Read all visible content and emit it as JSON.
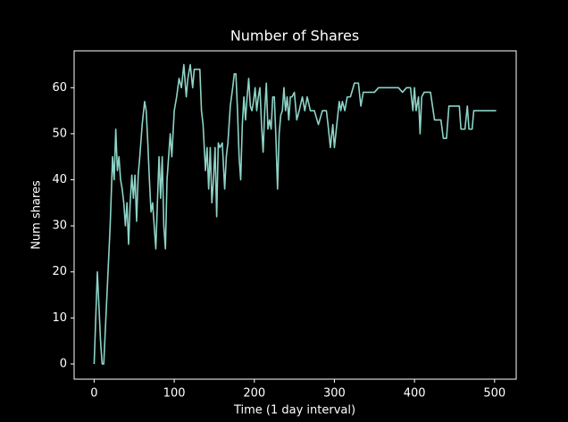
{
  "chart_data": {
    "type": "line",
    "title": "Number of Shares",
    "xlabel": "Time (1 day interval)",
    "ylabel": "Num shares",
    "x": [
      0,
      4,
      8,
      10,
      12,
      20,
      23,
      25,
      27,
      29,
      31,
      33,
      35,
      37,
      39,
      41,
      43,
      45,
      47,
      49,
      51,
      53,
      55,
      57,
      60,
      63,
      65,
      67,
      69,
      71,
      73,
      75,
      77,
      79,
      81,
      83,
      85,
      87,
      89,
      91,
      93,
      95,
      97,
      100,
      103,
      106,
      109,
      112,
      115,
      117,
      120,
      123,
      125,
      128,
      132,
      134,
      136,
      139,
      141,
      143,
      145,
      147,
      149,
      151,
      153,
      155,
      157,
      160,
      163,
      165,
      167,
      170,
      173,
      175,
      177,
      179,
      181,
      183,
      185,
      187,
      189,
      191,
      193,
      195,
      197,
      199,
      201,
      203,
      205,
      207,
      209,
      211,
      213,
      215,
      217,
      219,
      221,
      223,
      225,
      227,
      229,
      231,
      233,
      235,
      237,
      239,
      241,
      243,
      245,
      247,
      250,
      253,
      256,
      260,
      263,
      266,
      270,
      275,
      280,
      285,
      290,
      292,
      295,
      298,
      300,
      303,
      306,
      308,
      310,
      313,
      316,
      320,
      325,
      330,
      333,
      336,
      339,
      350,
      355,
      360,
      380,
      385,
      390,
      395,
      398,
      400,
      402,
      405,
      407,
      409,
      412,
      420,
      425,
      433,
      436,
      440,
      443,
      450,
      456,
      458,
      463,
      466,
      468,
      472,
      474,
      480,
      490,
      502
    ],
    "series": [
      {
        "name": "Num shares",
        "color": "#8dd3c7",
        "values": [
          0,
          20,
          5,
          0,
          0,
          30,
          45,
          40,
          51,
          42,
          45,
          40,
          38,
          35,
          30,
          35,
          26,
          35,
          41,
          36,
          41,
          31,
          41,
          45,
          52,
          57,
          55,
          48,
          40,
          33,
          35,
          30,
          25,
          35,
          45,
          36,
          45,
          30,
          25,
          40,
          45,
          50,
          45,
          55,
          58,
          62,
          60,
          65,
          58,
          62,
          65,
          60,
          64,
          64,
          64,
          55,
          52,
          42,
          47,
          38,
          47,
          35,
          40,
          47,
          32,
          48,
          47,
          48,
          38,
          45,
          48,
          56,
          60,
          63,
          63,
          55,
          45,
          40,
          52,
          58,
          53,
          58,
          62,
          56,
          55,
          57,
          60,
          55,
          58,
          60,
          52,
          46,
          55,
          61,
          51,
          53,
          51,
          58,
          58,
          49,
          38,
          50,
          54,
          55,
          60,
          55,
          58,
          53,
          58,
          58,
          59,
          53,
          55,
          58,
          55,
          58,
          55,
          55,
          52,
          55,
          55,
          52,
          47,
          52,
          47,
          52,
          57,
          55,
          57,
          55,
          58,
          58,
          61,
          61,
          56,
          59,
          59,
          59,
          60,
          60,
          60,
          59,
          60,
          60,
          55,
          60,
          55,
          58,
          50,
          58,
          59,
          59,
          53,
          53,
          49,
          49,
          56,
          56,
          56,
          51,
          51,
          56,
          51,
          51,
          55,
          55,
          55,
          55
        ]
      }
    ],
    "xlim": [
      -25,
      527
    ],
    "ylim": [
      -3.3,
      68
    ],
    "xticks": [
      0,
      100,
      200,
      300,
      400,
      500
    ],
    "yticks": [
      0,
      10,
      20,
      30,
      40,
      50,
      60
    ]
  }
}
